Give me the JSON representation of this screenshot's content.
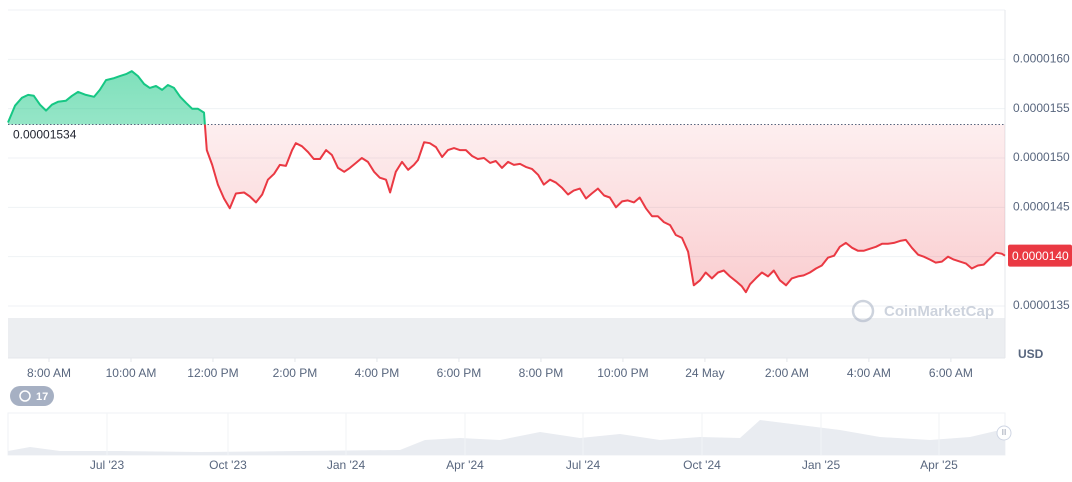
{
  "chart_data": {
    "type": "line",
    "x": [
      7.0,
      7.17,
      7.34,
      7.49,
      7.63,
      7.78,
      7.93,
      8.07,
      8.22,
      8.41,
      8.56,
      8.71,
      8.9,
      9.1,
      9.24,
      9.39,
      9.59,
      9.73,
      9.88,
      10.02,
      10.17,
      10.32,
      10.46,
      10.61,
      10.76,
      10.9,
      11.05,
      11.2,
      11.34,
      11.49,
      11.63,
      11.78,
      11.85,
      11.98,
      12.12,
      12.27,
      12.41,
      12.56,
      12.76,
      12.9,
      13.05,
      13.2,
      13.34,
      13.49,
      13.63,
      13.78,
      13.93,
      14.02,
      14.17,
      14.32,
      14.46,
      14.61,
      14.76,
      14.9,
      15.05,
      15.2,
      15.34,
      15.49,
      15.63,
      15.78,
      15.93,
      16.07,
      16.22,
      16.32,
      16.46,
      16.61,
      16.76,
      16.9,
      17.0,
      17.15,
      17.29,
      17.44,
      17.59,
      17.73,
      17.88,
      18.02,
      18.17,
      18.32,
      18.46,
      18.61,
      18.76,
      18.9,
      19.05,
      19.2,
      19.34,
      19.49,
      19.63,
      19.78,
      19.93,
      20.07,
      20.22,
      20.37,
      20.51,
      20.66,
      20.8,
      20.95,
      21.1,
      21.24,
      21.39,
      21.54,
      21.68,
      21.83,
      21.98,
      22.12,
      22.27,
      22.41,
      22.56,
      22.71,
      22.85,
      23.0,
      23.15,
      23.29,
      23.44,
      23.59,
      23.73,
      23.88,
      24.02,
      24.17,
      24.32,
      24.46,
      24.61,
      24.76,
      24.9,
      25.0,
      25.1,
      25.24,
      25.39,
      25.54,
      25.68,
      25.83,
      25.98,
      26.12,
      26.27,
      26.41,
      26.56,
      26.71,
      26.85,
      27.0,
      27.15,
      27.29,
      27.44,
      27.59,
      27.73,
      27.88,
      28.02,
      28.17,
      28.32,
      28.46,
      28.61,
      28.76,
      28.9,
      29.05,
      29.2,
      29.34,
      29.49,
      29.63,
      29.78,
      29.93,
      30.07,
      30.22,
      30.37,
      30.51,
      30.66,
      30.8,
      30.95,
      31.1,
      31.24,
      31.32
    ],
    "series": [
      {
        "name": "Price",
        "up_color": "#16c784",
        "down_color": "#ea3943",
        "values": [
          1.536e-05,
          1.553e-05,
          1.561e-05,
          1.564e-05,
          1.563e-05,
          1.554e-05,
          1.548e-05,
          1.554e-05,
          1.557e-05,
          1.558e-05,
          1.563e-05,
          1.567e-05,
          1.564e-05,
          1.562e-05,
          1.569e-05,
          1.579e-05,
          1.581e-05,
          1.583e-05,
          1.585e-05,
          1.588e-05,
          1.583e-05,
          1.575e-05,
          1.571e-05,
          1.573e-05,
          1.569e-05,
          1.574e-05,
          1.571e-05,
          1.562e-05,
          1.556e-05,
          1.55e-05,
          1.55e-05,
          1.546e-05,
          1.508e-05,
          1.493e-05,
          1.473e-05,
          1.459e-05,
          1.449e-05,
          1.464e-05,
          1.465e-05,
          1.461e-05,
          1.455e-05,
          1.463e-05,
          1.478e-05,
          1.484e-05,
          1.493e-05,
          1.492e-05,
          1.508e-05,
          1.515e-05,
          1.512e-05,
          1.506e-05,
          1.499e-05,
          1.499e-05,
          1.508e-05,
          1.503e-05,
          1.49e-05,
          1.486e-05,
          1.49e-05,
          1.495e-05,
          1.5e-05,
          1.496e-05,
          1.486e-05,
          1.48e-05,
          1.478e-05,
          1.465e-05,
          1.486e-05,
          1.496e-05,
          1.488e-05,
          1.493e-05,
          1.498e-05,
          1.516e-05,
          1.515e-05,
          1.511e-05,
          1.501e-05,
          1.508e-05,
          1.51e-05,
          1.508e-05,
          1.508e-05,
          1.502e-05,
          1.499e-05,
          1.5e-05,
          1.495e-05,
          1.497e-05,
          1.49e-05,
          1.496e-05,
          1.493e-05,
          1.494e-05,
          1.491e-05,
          1.489e-05,
          1.483e-05,
          1.473e-05,
          1.478e-05,
          1.475e-05,
          1.47e-05,
          1.463e-05,
          1.467e-05,
          1.469e-05,
          1.459e-05,
          1.464e-05,
          1.469e-05,
          1.462e-05,
          1.46e-05,
          1.45e-05,
          1.456e-05,
          1.457e-05,
          1.455e-05,
          1.46e-05,
          1.449e-05,
          1.441e-05,
          1.441e-05,
          1.435e-05,
          1.432e-05,
          1.422e-05,
          1.419e-05,
          1.405e-05,
          1.371e-05,
          1.376e-05,
          1.384e-05,
          1.378e-05,
          1.384e-05,
          1.386e-05,
          1.38e-05,
          1.375e-05,
          1.37e-05,
          1.364e-05,
          1.372e-05,
          1.378e-05,
          1.384e-05,
          1.38e-05,
          1.386e-05,
          1.376e-05,
          1.371e-05,
          1.378e-05,
          1.38e-05,
          1.381e-05,
          1.384e-05,
          1.388e-05,
          1.391e-05,
          1.399e-05,
          1.401e-05,
          1.41e-05,
          1.414e-05,
          1.409e-05,
          1.406e-05,
          1.406e-05,
          1.408e-05,
          1.41e-05,
          1.413e-05,
          1.413e-05,
          1.414e-05,
          1.416e-05,
          1.417e-05,
          1.409e-05,
          1.402e-05,
          1.4e-05,
          1.397e-05,
          1.394e-05,
          1.395e-05,
          1.4e-05,
          1.397e-05,
          1.395e-05,
          1.393e-05,
          1.388e-05,
          1.391e-05,
          1.392e-05,
          1.398e-05,
          1.404e-05,
          1.403e-05,
          1.401e-05
        ]
      }
    ],
    "xlim": [
      7,
      31.32
    ],
    "xticks": [
      {
        "value": 8,
        "label": "8:00 AM"
      },
      {
        "value": 10,
        "label": "10:00 AM"
      },
      {
        "value": 12,
        "label": "12:00 PM"
      },
      {
        "value": 14,
        "label": "2:00 PM"
      },
      {
        "value": 16,
        "label": "4:00 PM"
      },
      {
        "value": 18,
        "label": "6:00 PM"
      },
      {
        "value": 20,
        "label": "8:00 PM"
      },
      {
        "value": 22,
        "label": "10:00 PM"
      },
      {
        "value": 24,
        "label": "24 May"
      },
      {
        "value": 26,
        "label": "2:00 AM"
      },
      {
        "value": 28,
        "label": "4:00 AM"
      },
      {
        "value": 30,
        "label": "6:00 AM"
      }
    ],
    "ylim": [
      1.35e-05,
      1.65e-05
    ],
    "yticks": [
      {
        "value": 1.35e-05,
        "label": "0.0000135"
      },
      {
        "value": 1.4e-05,
        "label": "0.0000140"
      },
      {
        "value": 1.45e-05,
        "label": "0.0000145"
      },
      {
        "value": 1.5e-05,
        "label": "0.0000150"
      },
      {
        "value": 1.55e-05,
        "label": "0.0000155"
      },
      {
        "value": 1.6e-05,
        "label": "0.0000160"
      }
    ],
    "baseline": {
      "value": 1.534e-05,
      "label": "0.00001534"
    },
    "last_price": {
      "value": 1.401e-05,
      "label": "0.0000140"
    },
    "y_axis_label": "USD",
    "grid": true
  },
  "navigator": {
    "labels": [
      "Jul '23",
      "Oct '23",
      "Jan '24",
      "Apr '24",
      "Jul '24",
      "Oct '24",
      "Jan '25",
      "Apr '25"
    ]
  },
  "ui": {
    "badge": 17,
    "watermark": "CoinMarketCap"
  }
}
